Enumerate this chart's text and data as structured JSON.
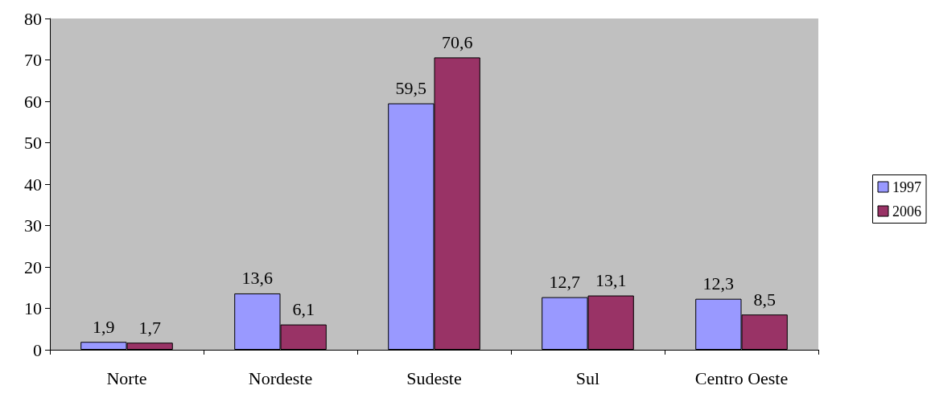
{
  "chart_data": {
    "type": "bar",
    "categories": [
      "Norte",
      "Nordeste",
      "Sudeste",
      "Sul",
      "Centro Oeste"
    ],
    "series": [
      {
        "name": "1997",
        "color": "#9999ff",
        "values": [
          1.9,
          13.6,
          59.5,
          12.7,
          12.3
        ],
        "value_labels": [
          "1,9",
          "13,6",
          "59,5",
          "12,7",
          "12,3"
        ]
      },
      {
        "name": "2006",
        "color": "#993366",
        "values": [
          1.7,
          6.1,
          70.6,
          13.1,
          8.5
        ],
        "value_labels": [
          "1,7",
          "6,1",
          "70,6",
          "13,1",
          "8,5"
        ]
      }
    ],
    "ylim": [
      0,
      80
    ],
    "yticks": [
      0,
      10,
      20,
      30,
      40,
      50,
      60,
      70,
      80
    ],
    "grid": false,
    "legend": "right"
  }
}
